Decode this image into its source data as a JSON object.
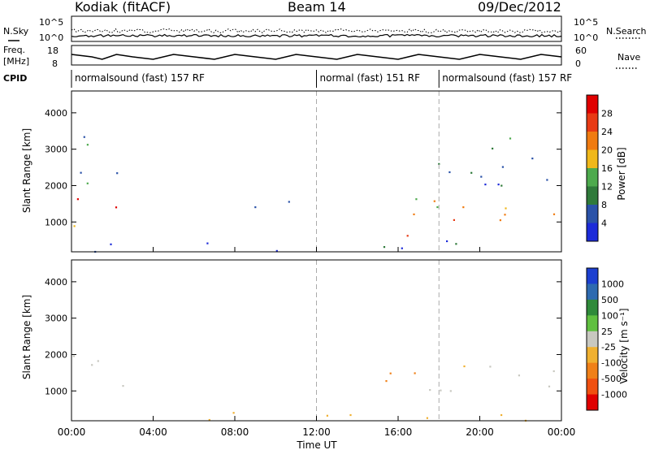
{
  "header": {
    "station": "Kodiak (fitACF)",
    "beam": "Beam 14",
    "date": "09/Dec/2012"
  },
  "noise_panel": {
    "left_label": "N.Sky",
    "right_label": "N.Search",
    "left_ticks": [
      "10^5",
      "10^0"
    ],
    "right_ticks": [
      "10^5",
      "10^0"
    ]
  },
  "freq_panel": {
    "left_label_1": "Freq.",
    "left_label_2": "[MHz]",
    "right_label": "Nave",
    "left_ticks": [
      "18",
      "8"
    ],
    "right_ticks": [
      "60",
      "0"
    ]
  },
  "cpid_panel": {
    "label": "CPID",
    "segments": [
      {
        "text": "normalsound (fast) 157 RF",
        "start_hour": 0,
        "end_hour": 12
      },
      {
        "text": "normal (fast) 151 RF",
        "start_hour": 12,
        "end_hour": 18
      },
      {
        "text": "normalsound (fast) 157 RF",
        "start_hour": 18,
        "end_hour": 24
      }
    ]
  },
  "power_panel": {
    "ylabel": "Slant Range [km]",
    "yticks": [
      "4000",
      "3000",
      "2000",
      "1000"
    ],
    "colorbar_label": "Power [dB]",
    "colorbar_ticks": [
      "28",
      "24",
      "20",
      "16",
      "12",
      "8",
      "4"
    ],
    "colors": [
      "#1c2bd9",
      "#2a52a8",
      "#2f7a3a",
      "#4daa4d",
      "#f0b81a",
      "#f07b10",
      "#e83a14",
      "#e00000"
    ]
  },
  "velocity_panel": {
    "ylabel": "Slant Range [km]",
    "yticks": [
      "4000",
      "3000",
      "2000",
      "1000"
    ],
    "colorbar_label": "Velocity [m s⁻¹]",
    "colorbar_ticks": [
      "1000",
      "500",
      "100",
      "25",
      "-25",
      "-100",
      "-500",
      "-1000"
    ],
    "colors": [
      "#1c3fd0",
      "#2e6ab0",
      "#2f8a3a",
      "#60c040",
      "#c8c8c0",
      "#f0b030",
      "#f08018",
      "#f05010",
      "#e00000"
    ]
  },
  "x_axis": {
    "ticks": [
      "00:00",
      "04:00",
      "08:00",
      "12:00",
      "16:00",
      "20:00",
      "00:00"
    ],
    "label": "Time UT"
  },
  "chart_data": {
    "type": "heatmap",
    "title": "Kodiak (fitACF)",
    "subtitle": "Beam 14",
    "date": "09/Dec/2012",
    "xlabel": "Time UT",
    "ylabel": "Slant Range [km]",
    "xlim_hours": [
      0,
      24
    ],
    "ylim_km": [
      180,
      4600
    ],
    "power_db_range": [
      0,
      32
    ],
    "velocity_range": [
      -1200,
      1200
    ],
    "cpid": [
      "normalsound (fast) 157 RF",
      "normal (fast) 151 RF",
      "normalsound (fast) 157 RF"
    ],
    "power_regions": [
      {
        "t0": 0.0,
        "t1": 2.8,
        "r0": 900,
        "r1": 1800,
        "power_db": 24
      },
      {
        "t0": 0.0,
        "t1": 2.8,
        "r0": 1800,
        "r1": 3500,
        "power_db": 10
      },
      {
        "t0": 5.5,
        "t1": 11.0,
        "r0": 1250,
        "r1": 1600,
        "power_db": 10
      },
      {
        "t0": 14.0,
        "t1": 17.0,
        "r0": 1000,
        "r1": 1700,
        "power_db": 18
      },
      {
        "t0": 15.5,
        "t1": 16.5,
        "r0": 200,
        "r1": 700,
        "power_db": 26
      },
      {
        "t0": 17.0,
        "t1": 24.0,
        "r0": 900,
        "r1": 1900,
        "power_db": 20
      },
      {
        "t0": 17.0,
        "t1": 24.0,
        "r0": 1900,
        "r1": 3500,
        "power_db": 8
      },
      {
        "t0": 0.0,
        "t1": 24.0,
        "r0": 200,
        "r1": 500,
        "power_db": 6
      }
    ],
    "velocity_regions": [
      {
        "t0": 0.0,
        "t1": 2.8,
        "r0": 900,
        "r1": 2100,
        "velocity_ms": 0
      },
      {
        "t0": 13.5,
        "t1": 17.5,
        "r0": 1100,
        "r1": 1750,
        "velocity_ms": -200
      },
      {
        "t0": 17.5,
        "t1": 24.0,
        "r0": 900,
        "r1": 2000,
        "velocity_ms": 0
      },
      {
        "t0": 0.0,
        "t1": 24.0,
        "r0": 200,
        "r1": 450,
        "velocity_ms": -80
      }
    ]
  }
}
